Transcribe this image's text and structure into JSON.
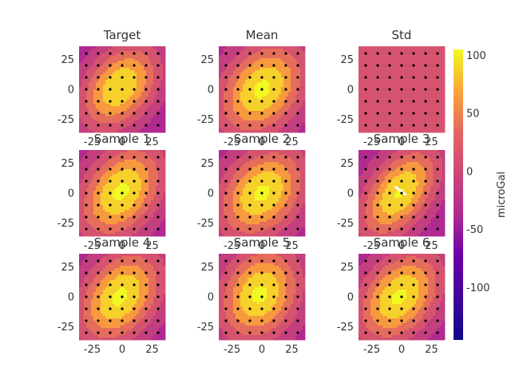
{
  "chart_data": {
    "type": "heatmap",
    "colormap": "plasma",
    "colorbar": {
      "label": "microGal",
      "range": [
        -145,
        105
      ],
      "ticks": [
        100,
        50,
        0,
        -50,
        -100
      ]
    },
    "panel_axis": {
      "xlim": [
        -36,
        36
      ],
      "ylim": [
        -36,
        36
      ],
      "xticks": [
        -25,
        0,
        25
      ],
      "yticks": [
        25,
        0,
        -25
      ]
    },
    "grid_points": [
      -30,
      -20,
      -10,
      0,
      10,
      20,
      30
    ],
    "panels": [
      {
        "title": "Target",
        "field": {
          "amp": 100,
          "center": [
            -2,
            2
          ],
          "sx": 24,
          "sy": 26,
          "rho": 0.35,
          "offset": -50
        }
      },
      {
        "title": "Mean",
        "field": {
          "amp": 100,
          "center": [
            0,
            0
          ],
          "sx": 26,
          "sy": 28,
          "rho": 0.3,
          "offset": -45
        }
      },
      {
        "title": "Std",
        "uniform_value": 0
      },
      {
        "title": "Sample 1",
        "field": {
          "amp": 100,
          "center": [
            -1,
            1
          ],
          "sx": 25,
          "sy": 28,
          "rho": 0.35,
          "offset": -45
        }
      },
      {
        "title": "Sample 2",
        "field": {
          "amp": 100,
          "center": [
            0,
            0
          ],
          "sx": 26,
          "sy": 27,
          "rho": 0.3,
          "offset": -45
        }
      },
      {
        "title": "Sample 3",
        "field": {
          "amp": 100,
          "center": [
            -2,
            0
          ],
          "sx": 24,
          "sy": 28,
          "rho": 0.5,
          "offset": -48
        },
        "highlight": true
      },
      {
        "title": "Sample 4",
        "field": {
          "amp": 100,
          "center": [
            -2,
            0
          ],
          "sx": 25,
          "sy": 28,
          "rho": 0.35,
          "offset": -45
        }
      },
      {
        "title": "Sample 5",
        "field": {
          "amp": 100,
          "center": [
            -2,
            2
          ],
          "sx": 24,
          "sy": 28,
          "rho": 0.2,
          "offset": -45
        }
      },
      {
        "title": "Sample 6",
        "field": {
          "amp": 100,
          "center": [
            -2,
            0
          ],
          "sx": 25,
          "sy": 27,
          "rho": 0.35,
          "offset": -45
        }
      }
    ]
  }
}
